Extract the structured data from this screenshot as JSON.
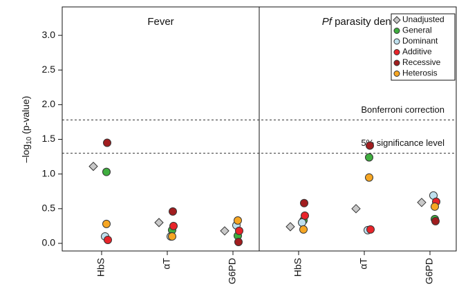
{
  "chart_data": {
    "type": "dot",
    "y_label": [
      "–log",
      "10",
      " (p-value)"
    ],
    "ylim": [
      -0.11,
      3.41
    ],
    "yticks": [
      {
        "value": 0,
        "label": "0.0"
      },
      0.5,
      {
        "value": 1,
        "label": "1.0"
      },
      1.5,
      {
        "value": 2,
        "label": "2.0"
      },
      2.5,
      {
        "value": 3,
        "label": "3.0"
      }
    ],
    "hlines": [
      {
        "value": 1.78,
        "label": "Bonferroni correction"
      },
      {
        "value": 1.3,
        "label": "5% significance level"
      }
    ],
    "series": [
      {
        "name": "Unadjusted",
        "color": "#c8c8c8",
        "marker": "diamond"
      },
      {
        "name": "General",
        "color": "#3fae3f",
        "marker": "circle"
      },
      {
        "name": "Dominant",
        "color": "#bfe0ee",
        "marker": "circle"
      },
      {
        "name": "Additive",
        "color": "#e8242a",
        "marker": "circle"
      },
      {
        "name": "Recessive",
        "color": "#a11d1f",
        "marker": "circle"
      },
      {
        "name": "Heterosis",
        "color": "#f6a623",
        "marker": "circle"
      }
    ],
    "panels": [
      {
        "title": "Fever",
        "categories": [
          "HbS",
          "αT",
          "G6PD"
        ],
        "values": [
          [
            1.11,
            0.3,
            0.18
          ],
          [
            1.03,
            0.19,
            0.11
          ],
          [
            0.1,
            0.1,
            0.26
          ],
          [
            0.05,
            0.25,
            0.18
          ],
          [
            1.45,
            0.46,
            0.02
          ],
          [
            0.28,
            0.1,
            0.33
          ]
        ]
      },
      {
        "title_prefix": "Pf",
        "title": "parasity density",
        "categories": [
          "HbS",
          "αT",
          "G6PD"
        ],
        "values": [
          [
            0.24,
            0.5,
            0.59
          ],
          [
            0.33,
            1.24,
            0.35
          ],
          [
            0.3,
            0.19,
            0.69
          ],
          [
            0.4,
            0.2,
            0.6
          ],
          [
            0.58,
            1.41,
            0.32
          ],
          [
            0.2,
            0.95,
            0.53
          ]
        ]
      }
    ]
  }
}
